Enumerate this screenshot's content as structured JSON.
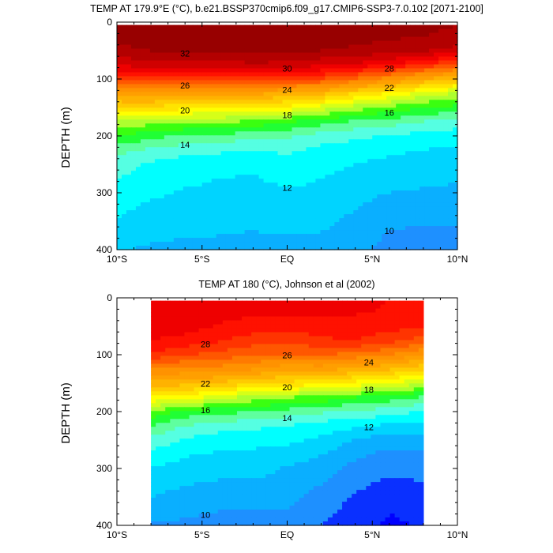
{
  "charts": [
    {
      "title": "TEMP AT 179.9°E (°C), b.e21.BSSP370cmip6.f09_g17.CMIP6-SSP3-7.0.102 [2071-2100]",
      "ylabel": "DEPTH (m)",
      "x_ticks": [
        "10°S",
        "5°S",
        "EQ",
        "5°N",
        "10°N"
      ],
      "y_ticks": [
        "0",
        "100",
        "200",
        "300",
        "400"
      ]
    },
    {
      "title": "TEMP AT 180 (°C), Johnson et al (2002)",
      "ylabel": "DEPTH (m)",
      "x_ticks": [
        "10°S",
        "5°S",
        "EQ",
        "5°N",
        "10°N"
      ],
      "y_ticks": [
        "0",
        "100",
        "200",
        "300",
        "400"
      ]
    }
  ],
  "chart_data": [
    {
      "type": "heatmap",
      "title": "TEMP AT 179.9°E (°C), b.e21.BSSP370cmip6.f09_g17.CMIP6-SSP3-7.0.102 [2071-2100]",
      "ylabel": "DEPTH (m)",
      "xlabel": "",
      "x_range_lat": [
        -10,
        10
      ],
      "y_range_depth": [
        400,
        0
      ],
      "data_lat_range": [
        -10,
        10
      ],
      "data_depth_range": [
        5,
        400
      ],
      "contour_interval": 1,
      "x": [
        -10,
        -8,
        -6,
        -4,
        -2,
        0,
        2,
        4,
        6,
        8,
        10
      ],
      "depth": [
        5,
        25,
        50,
        75,
        100,
        125,
        150,
        175,
        200,
        225,
        250,
        275,
        300,
        350,
        400
      ],
      "temperature": [
        [
          32.4,
          32.5,
          32.6,
          32.7,
          32.7,
          32.8,
          32.6,
          32.5,
          32.3,
          32.1,
          32.0
        ],
        [
          32.3,
          32.4,
          32.6,
          32.6,
          32.7,
          32.8,
          32.6,
          32.4,
          32.2,
          32.0,
          31.9
        ],
        [
          31.8,
          32.0,
          32.2,
          32.2,
          32.2,
          32.2,
          32.0,
          31.8,
          31.5,
          31.1,
          30.6
        ],
        [
          30.2,
          30.5,
          30.6,
          30.6,
          30.8,
          30.7,
          30.2,
          29.8,
          29.0,
          28.0,
          26.8
        ],
        [
          27.5,
          27.5,
          27.6,
          27.5,
          27.5,
          27.4,
          27.0,
          25.8,
          24.5,
          23.0,
          21.8
        ],
        [
          23.8,
          24.0,
          23.5,
          23.5,
          23.3,
          22.9,
          22.3,
          21.0,
          20.0,
          18.6,
          17.9
        ],
        [
          20.8,
          20.8,
          20.4,
          20.1,
          20.0,
          19.7,
          18.6,
          17.6,
          16.8,
          16.1,
          15.7
        ],
        [
          17.9,
          17.5,
          17.3,
          17.3,
          16.8,
          16.1,
          15.5,
          14.9,
          14.5,
          14.0,
          13.6
        ],
        [
          16.1,
          15.3,
          14.9,
          14.7,
          14.4,
          14.2,
          13.6,
          13.2,
          12.9,
          12.6,
          12.4
        ],
        [
          14.4,
          13.8,
          13.4,
          13.2,
          13.0,
          13.2,
          12.7,
          12.5,
          12.2,
          12.0,
          11.8
        ],
        [
          13.5,
          12.8,
          12.4,
          12.3,
          12.3,
          12.6,
          12.3,
          12.0,
          11.7,
          11.5,
          11.4
        ],
        [
          13.0,
          12.6,
          12.2,
          12.0,
          11.9,
          12.3,
          12.0,
          11.6,
          11.3,
          11.2,
          11.1
        ],
        [
          12.7,
          12.2,
          11.9,
          11.8,
          11.7,
          11.8,
          11.8,
          11.3,
          11.0,
          10.9,
          10.8
        ],
        [
          11.9,
          11.4,
          11.3,
          11.2,
          11.1,
          11.2,
          11.2,
          10.8,
          10.2,
          10.1,
          10.1
        ],
        [
          11.0,
          10.9,
          10.8,
          10.8,
          10.8,
          10.8,
          10.7,
          10.3,
          9.6,
          9.4,
          9.3
        ]
      ],
      "contour_labels": [
        "32",
        "30",
        "28",
        "26",
        "24",
        "22",
        "20",
        "18",
        "16",
        "14",
        "12",
        "10"
      ]
    },
    {
      "type": "heatmap",
      "title": "TEMP AT 180 (°C), Johnson et al (2002)",
      "ylabel": "DEPTH (m)",
      "xlabel": "",
      "x_range_lat": [
        -10,
        10
      ],
      "y_range_depth": [
        400,
        0
      ],
      "data_lat_range": [
        -8,
        8
      ],
      "data_depth_range": [
        5,
        400
      ],
      "contour_interval": 1,
      "x": [
        -8,
        -6,
        -4,
        -2,
        0,
        2,
        4,
        6,
        8
      ],
      "depth": [
        5,
        25,
        50,
        75,
        100,
        125,
        150,
        175,
        200,
        225,
        250,
        275,
        300,
        350,
        400
      ],
      "temperature": [
        [
          29.8,
          29.7,
          29.5,
          29.4,
          29.4,
          29.3,
          29.2,
          29.0,
          28.8
        ],
        [
          29.7,
          29.6,
          29.3,
          29.2,
          29.3,
          29.2,
          29.1,
          28.9,
          28.7
        ],
        [
          29.5,
          29.4,
          28.9,
          28.6,
          28.4,
          28.7,
          28.6,
          28.4,
          28.0
        ],
        [
          29.0,
          28.7,
          28.1,
          27.5,
          27.2,
          27.8,
          28.0,
          27.4,
          26.6
        ],
        [
          27.8,
          27.1,
          26.7,
          26.1,
          26.0,
          26.2,
          25.6,
          25.0,
          24.0
        ],
        [
          25.1,
          24.7,
          24.6,
          24.1,
          23.2,
          23.4,
          22.9,
          22.2,
          21.2
        ],
        [
          22.7,
          22.4,
          21.8,
          21.3,
          20.8,
          20.3,
          19.7,
          18.9,
          18.2
        ],
        [
          19.9,
          19.6,
          18.3,
          17.7,
          17.0,
          16.8,
          16.0,
          15.6,
          14.9
        ],
        [
          16.9,
          15.7,
          15.3,
          15.1,
          14.6,
          14.2,
          13.8,
          13.5,
          12.9
        ],
        [
          15.0,
          14.0,
          13.6,
          13.2,
          13.0,
          12.5,
          12.2,
          11.8,
          11.7
        ],
        [
          13.7,
          12.9,
          12.3,
          12.5,
          12.2,
          11.8,
          11.0,
          10.4,
          10.6
        ],
        [
          12.7,
          12.1,
          11.9,
          11.7,
          11.6,
          11.0,
          10.2,
          9.7,
          9.9
        ],
        [
          12.0,
          11.6,
          11.4,
          11.4,
          10.9,
          10.5,
          9.7,
          9.3,
          9.4
        ],
        [
          11.0,
          10.6,
          10.4,
          10.3,
          10.4,
          9.6,
          8.9,
          8.3,
          8.5
        ],
        [
          9.9,
          9.8,
          9.6,
          9.5,
          9.6,
          9.0,
          8.4,
          7.8,
          8.1
        ]
      ],
      "contour_labels": [
        "28",
        "26",
        "24",
        "22",
        "20",
        "18",
        "16",
        "14",
        "12",
        "10"
      ]
    }
  ],
  "colors": {
    "colormap": [
      "#0000ff",
      "#1e90ff",
      "#00bfff",
      "#00ffff",
      "#7fffd4",
      "#00ff00",
      "#adff2f",
      "#ffff00",
      "#ffd700",
      "#ffa500",
      "#ff8c00",
      "#ff4500",
      "#ff0000",
      "#c00000",
      "#8b0000"
    ],
    "contour_line": "#000000",
    "frame": "#000000"
  }
}
